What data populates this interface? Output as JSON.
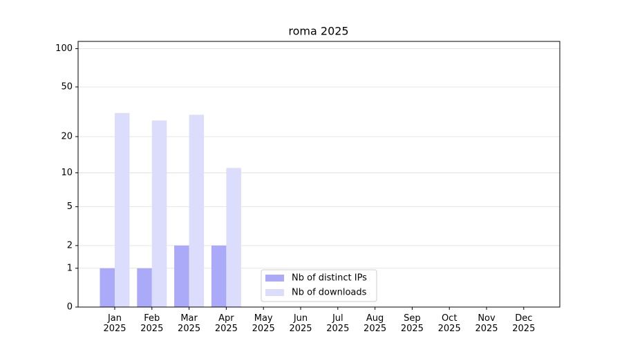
{
  "chart_data": {
    "type": "bar",
    "title": "roma 2025",
    "categories": [
      "Jan\n2025",
      "Feb\n2025",
      "Mar\n2025",
      "Apr\n2025",
      "May\n2025",
      "Jun\n2025",
      "Jul\n2025",
      "Aug\n2025",
      "Sep\n2025",
      "Oct\n2025",
      "Nov\n2025",
      "Dec\n2025"
    ],
    "series": [
      {
        "name": "Nb of distinct IPs",
        "color": "#aaaaf8",
        "values": [
          1,
          1,
          2,
          2,
          null,
          null,
          null,
          null,
          null,
          null,
          null,
          null
        ]
      },
      {
        "name": "Nb of downloads",
        "color": "#dcdcfc",
        "values": [
          31,
          27,
          30,
          11,
          null,
          null,
          null,
          null,
          null,
          null,
          null,
          null
        ]
      }
    ],
    "yscale": "log1p",
    "ylim": [
      0,
      114
    ],
    "yticks": [
      0,
      1,
      2,
      5,
      10,
      20,
      50,
      100
    ],
    "grid": true,
    "legend": "lower center"
  }
}
